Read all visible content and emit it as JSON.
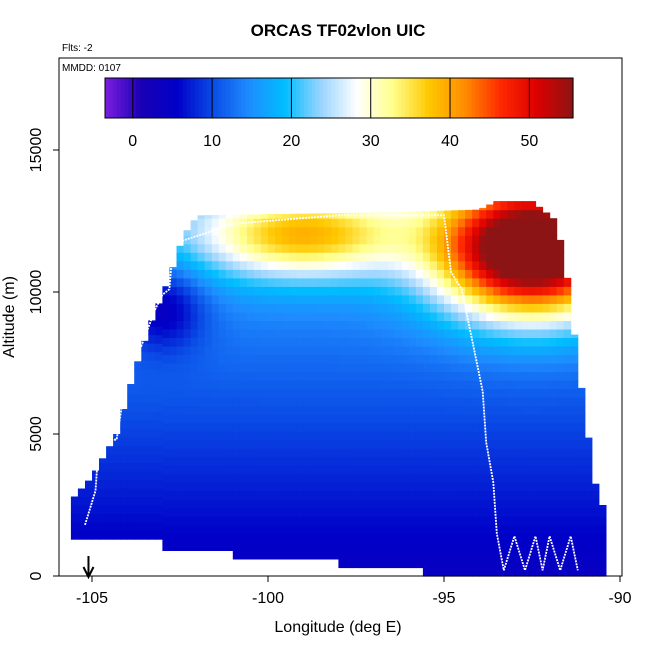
{
  "chart_data": {
    "type": "heatmap",
    "title": "ORCAS TF02vlon UIC",
    "annotation_flts": "Flts: -2",
    "annotation_mmdd": "MMDD: 0107",
    "xlabel": "Longitude (deg E)",
    "ylabel": "Altitude (m)",
    "xlim": [
      -106.2,
      -90
    ],
    "ylim": [
      0,
      18000
    ],
    "x_ticks": [
      -105,
      -100,
      -95,
      -90
    ],
    "x_tick_labels": [
      "-105",
      "-100",
      "-95",
      "-90"
    ],
    "y_ticks": [
      0,
      5000,
      10000,
      15000
    ],
    "y_tick_labels": [
      "0",
      "5000",
      "10000",
      "15000"
    ],
    "colorbar": {
      "range": [
        -3.5,
        55.5
      ],
      "ticks": [
        0,
        10,
        20,
        30,
        40,
        50
      ],
      "tick_labels": [
        "0",
        "10",
        "20",
        "30",
        "40",
        "50"
      ],
      "colors": [
        "#7b1fe0",
        "#1a00b4",
        "#0000c8",
        "#0a4be6",
        "#1e8cff",
        "#00beff",
        "#9ad4ff",
        "#ffffff",
        "#ffff8c",
        "#ffc800",
        "#ff8c00",
        "#ff2800",
        "#dc0000",
        "#8c1414"
      ]
    },
    "field_description": {
      "surface_wind_ms": 4,
      "mid_level_wind_ms": 14,
      "jet_core_longitude": -92.5,
      "jet_core_altitude_m": 11500,
      "jet_core_wind_ms": 50
    },
    "flight_track": {
      "longitude": [
        -105.2,
        -104.9,
        -104.8,
        -104.3,
        -103.9,
        -103.6,
        -103.2,
        -103.0,
        -102.8,
        -102.7,
        -101.7,
        -101.0,
        -98.0,
        -95.0,
        -94.8,
        -94.5,
        -94.2,
        -93.9,
        -93.8,
        -93.6,
        -93.5,
        -93.3,
        -93.0,
        -92.7,
        -92.4,
        -92.2,
        -92.0,
        -91.7,
        -91.4,
        -91.2
      ],
      "altitude_m": [
        1800,
        3000,
        4800,
        4800,
        8000,
        8100,
        9400,
        9900,
        10100,
        11700,
        12100,
        12400,
        12700,
        12700,
        10700,
        10100,
        8300,
        6500,
        4700,
        3300,
        1500,
        200,
        1400,
        200,
        1400,
        200,
        1400,
        200,
        1400,
        200
      ]
    },
    "arrow_marker_longitude": -105.1
  }
}
